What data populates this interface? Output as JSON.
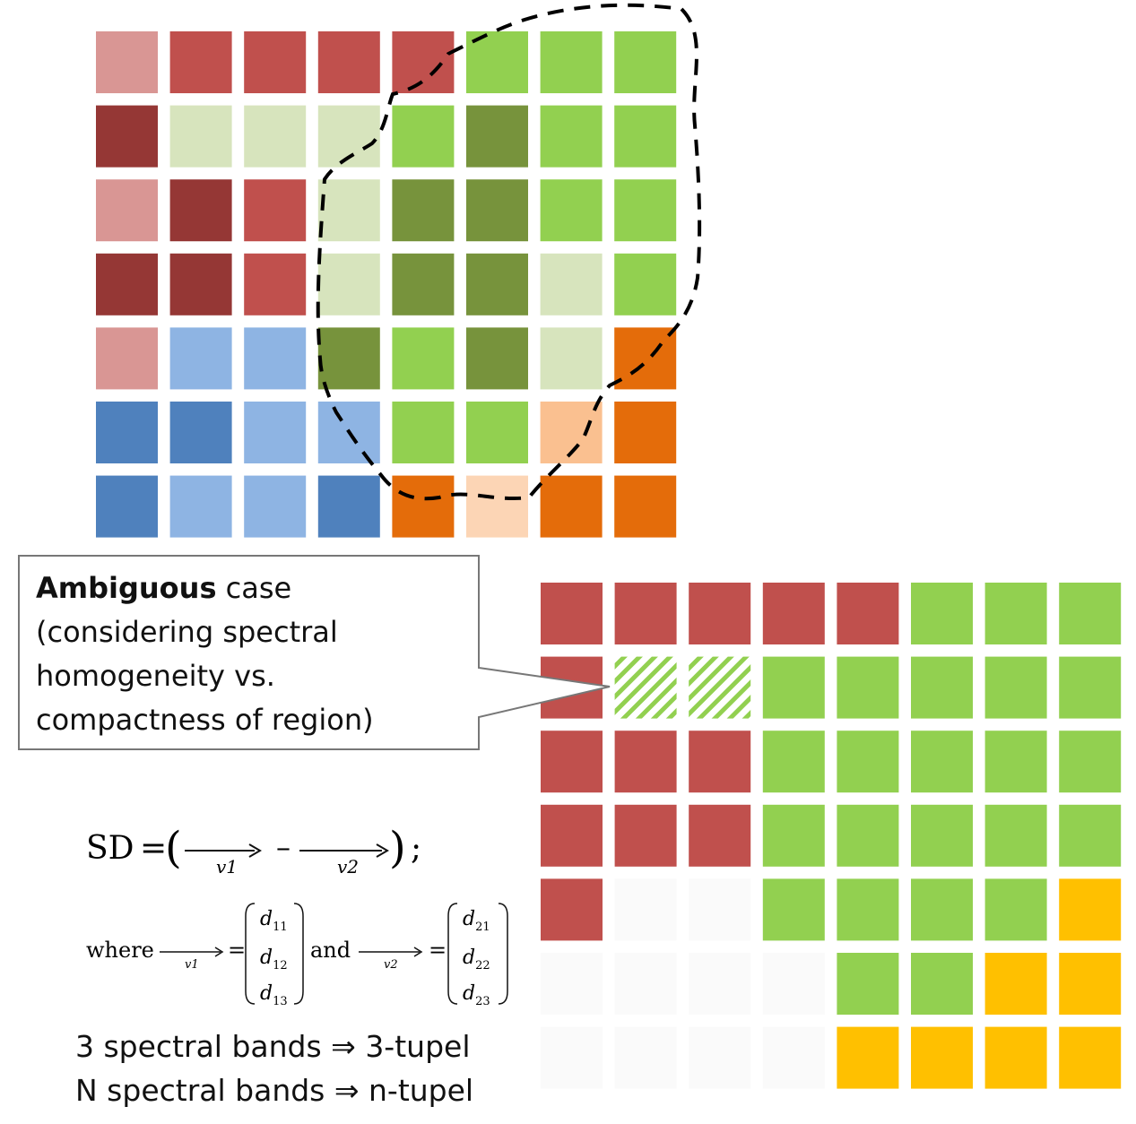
{
  "colors": {
    "A": "#d99694",
    "B": "#c0504d",
    "C": "#953735",
    "D": "#d7e4bd",
    "E": "#92d050",
    "F": "#77933c",
    "G": "#8eb4e3",
    "H": "#4f81bd",
    "I": "#e46c0a",
    "J": "#fac090",
    "K": "#fcd5b5",
    "L": "#ffc000",
    "W": "#fafafa"
  },
  "grid_top": [
    "ABBBBEEE",
    "CDDDEFEE",
    "ACBDFFEE",
    "CCBDFFDE",
    "AGGFEFDI",
    "HHGGEEJI",
    "HGGHIKII"
  ],
  "grid_bottom": [
    "BBBBBEEE",
    "BSSEEEEE",
    "BBBEEEEE",
    "BBBEEEEE",
    "BWWEEEEL",
    "WWWWEELL",
    "WWWWLLLL"
  ],
  "callout": {
    "bold": "Ambiguous",
    "rest_line1": " case",
    "line2": "(considering spectral",
    "line3": "homogeneity vs.",
    "line4": "compactness of region)"
  },
  "formula": {
    "sd": "SD",
    "eq": "=",
    "v1": "v1",
    "v2": "v2",
    "minus": "–",
    "tail": ";",
    "where": "where",
    "and": "and",
    "d1": [
      "d11",
      "d12",
      "d13"
    ],
    "d2": [
      "d21",
      "d22",
      "d23"
    ]
  },
  "bands": {
    "line1": "3 spectral bands ⇒ 3-tupel",
    "line2": "N spectral bands ⇒ n-tupel"
  }
}
